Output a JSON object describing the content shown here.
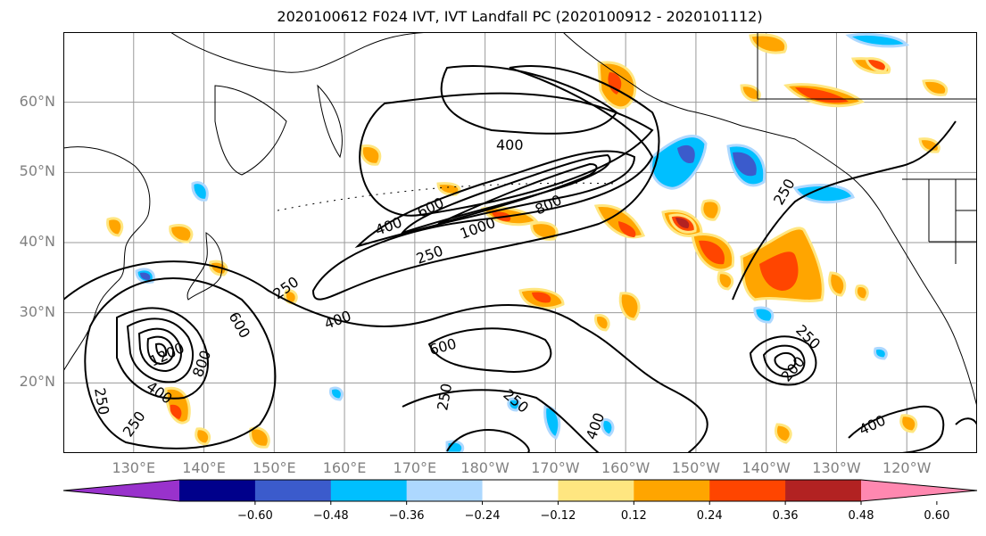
{
  "title": "2020100612 F024 IVT, IVT Landfall PC (2020100912 - 2020101112)",
  "map": {
    "lat_labels": [
      "60°N",
      "50°N",
      "40°N",
      "30°N",
      "20°N"
    ],
    "lon_labels": [
      "130°E",
      "140°E",
      "150°E",
      "160°E",
      "170°E",
      "180°W",
      "170°W",
      "160°W",
      "150°W",
      "140°W",
      "130°W",
      "120°W"
    ],
    "lon_range": [
      120,
      250
    ],
    "lat_range": [
      10,
      70
    ],
    "contour_labels": [
      "400",
      "600",
      "1000",
      "800",
      "400",
      "250",
      "250",
      "600",
      "400",
      "1200",
      "800",
      "400",
      "250",
      "250",
      "600",
      "400",
      "250",
      "250",
      "200",
      "400",
      "250",
      "250"
    ]
  },
  "colorbar": {
    "colors": [
      "#9932cc",
      "#00008b",
      "#3b5bcc",
      "#00bfff",
      "#add8ff",
      "#ffffff",
      "#ffe680",
      "#ffa500",
      "#ff4500",
      "#b22222",
      "#ff88b0"
    ],
    "ticks": [
      "−0.60",
      "−0.48",
      "−0.36",
      "−0.24",
      "−0.12",
      "0.12",
      "0.24",
      "0.36",
      "0.48",
      "0.60"
    ]
  }
}
